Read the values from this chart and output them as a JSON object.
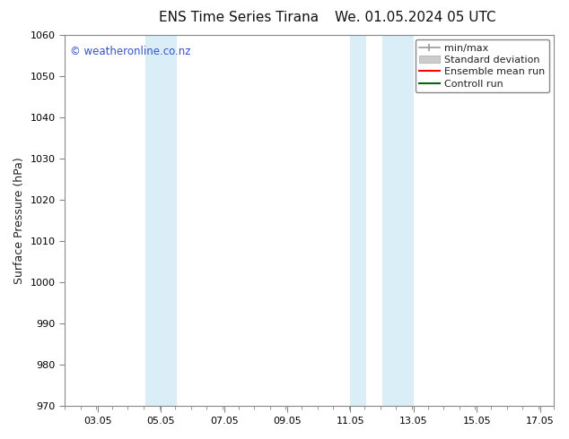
{
  "title_left": "ENS Time Series Tirana",
  "title_right": "We. 01.05.2024 05 UTC",
  "ylabel": "Surface Pressure (hPa)",
  "ylim": [
    970,
    1060
  ],
  "yticks": [
    970,
    980,
    990,
    1000,
    1010,
    1020,
    1030,
    1040,
    1050,
    1060
  ],
  "xlim_start": 2.0,
  "xlim_end": 17.5,
  "xticks": [
    3.05,
    5.05,
    7.05,
    9.05,
    11.05,
    13.05,
    15.05,
    17.05
  ],
  "xticklabels": [
    "03.05",
    "05.05",
    "07.05",
    "09.05",
    "11.05",
    "13.05",
    "15.05",
    "17.05"
  ],
  "band1_x0": 4.55,
  "band1_x1": 5.05,
  "band2_x0": 5.05,
  "band2_x1": 5.55,
  "band3_x0": 11.05,
  "band3_x1": 11.55,
  "band4_x0": 12.05,
  "band4_x1": 13.05,
  "band_color": "#daeef8",
  "watermark": "© weatheronline.co.nz",
  "watermark_color": "#3355cc",
  "bg_color": "#ffffff",
  "spine_color": "#888888",
  "tick_color": "#555555",
  "title_fontsize": 11,
  "axis_fontsize": 8,
  "label_fontsize": 9,
  "legend_fontsize": 8
}
